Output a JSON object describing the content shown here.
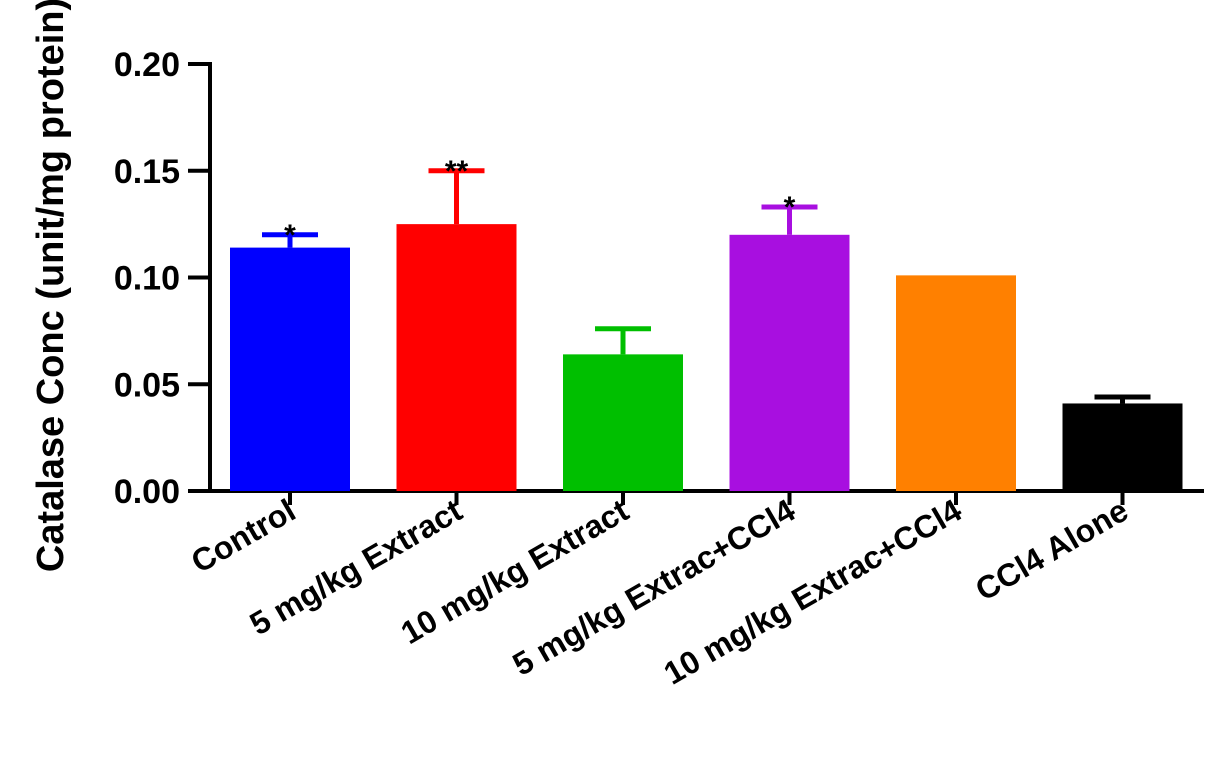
{
  "chart_data": {
    "type": "bar",
    "title": "",
    "xlabel": "",
    "ylabel": "Catalase Conc (unit/mg protein)",
    "ylim": [
      0,
      0.2
    ],
    "yticks": [
      "0.00",
      "0.05",
      "0.10",
      "0.15",
      "0.20"
    ],
    "grid": false,
    "categories": [
      "Control",
      "5 mg/kg Extract",
      "10 mg/kg Extract",
      "5 mg/kg Extrac+CCl4",
      "10 mg/kg Extrac+CCl4",
      "CCl4 Alone"
    ],
    "values": [
      0.114,
      0.125,
      0.064,
      0.12,
      0.101,
      0.041
    ],
    "error_upper": [
      0.006,
      0.025,
      0.012,
      0.013,
      0.0,
      0.003
    ],
    "annotations": [
      "*",
      "**",
      "",
      "*",
      "",
      ""
    ],
    "colors": [
      "#0000ff",
      "#ff0000",
      "#00bf00",
      "#a80fe0",
      "#ff8000",
      "#000000"
    ]
  }
}
